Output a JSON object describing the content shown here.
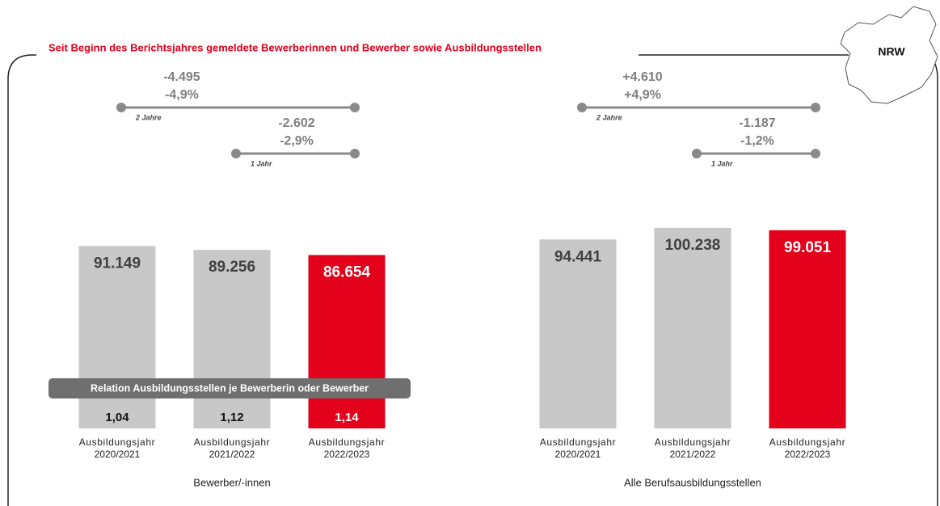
{
  "title": "Seit Beginn des Berichtsjahres gemeldete Bewerberinnen und Bewerber sowie Ausbildungsstellen",
  "region": "NRW",
  "relation_title": "Relation Ausbildungsstellen je Bewerberin oder Bewerber",
  "chart_data": [
    {
      "type": "bar",
      "xlabel": "Bewerber/-innen",
      "categories": [
        [
          "Ausbildungsjahr",
          "2020/2021"
        ],
        [
          "Ausbildungsjahr",
          "2021/2022"
        ],
        [
          "Ausbildungsjahr",
          "2022/2023"
        ]
      ],
      "values": [
        91149,
        89256,
        86654
      ],
      "value_labels": [
        "91.149",
        "89.256",
        "86.654"
      ],
      "colors": [
        "#c8c8c8",
        "#c8c8c8",
        "#e2001a"
      ],
      "ylim": [
        0,
        120000
      ],
      "changes": [
        {
          "period": "2 Jahre",
          "diff": "-4.495",
          "percent": "-4,9%"
        },
        {
          "period": "1 Jahr",
          "diff": "-2.602",
          "percent": "-2,9%"
        }
      ],
      "ratios": [
        "1,04",
        "1,12",
        "1,14"
      ]
    },
    {
      "type": "bar",
      "xlabel": "Alle Berufsausbildungsstellen",
      "categories": [
        [
          "Ausbildungsjahr",
          "2020/2021"
        ],
        [
          "Ausbildungsjahr",
          "2021/2022"
        ],
        [
          "Ausbildungsjahr",
          "2022/2023"
        ]
      ],
      "values": [
        94441,
        100238,
        99051
      ],
      "value_labels": [
        "94.441",
        "100.238",
        "99.051"
      ],
      "colors": [
        "#c8c8c8",
        "#c8c8c8",
        "#e2001a"
      ],
      "ylim": [
        0,
        120000
      ],
      "changes": [
        {
          "period": "2 Jahre",
          "diff": "+4.610",
          "percent": "+4,9%"
        },
        {
          "period": "1 Jahr",
          "diff": "-1.187",
          "percent": "-1,2%"
        }
      ]
    }
  ]
}
